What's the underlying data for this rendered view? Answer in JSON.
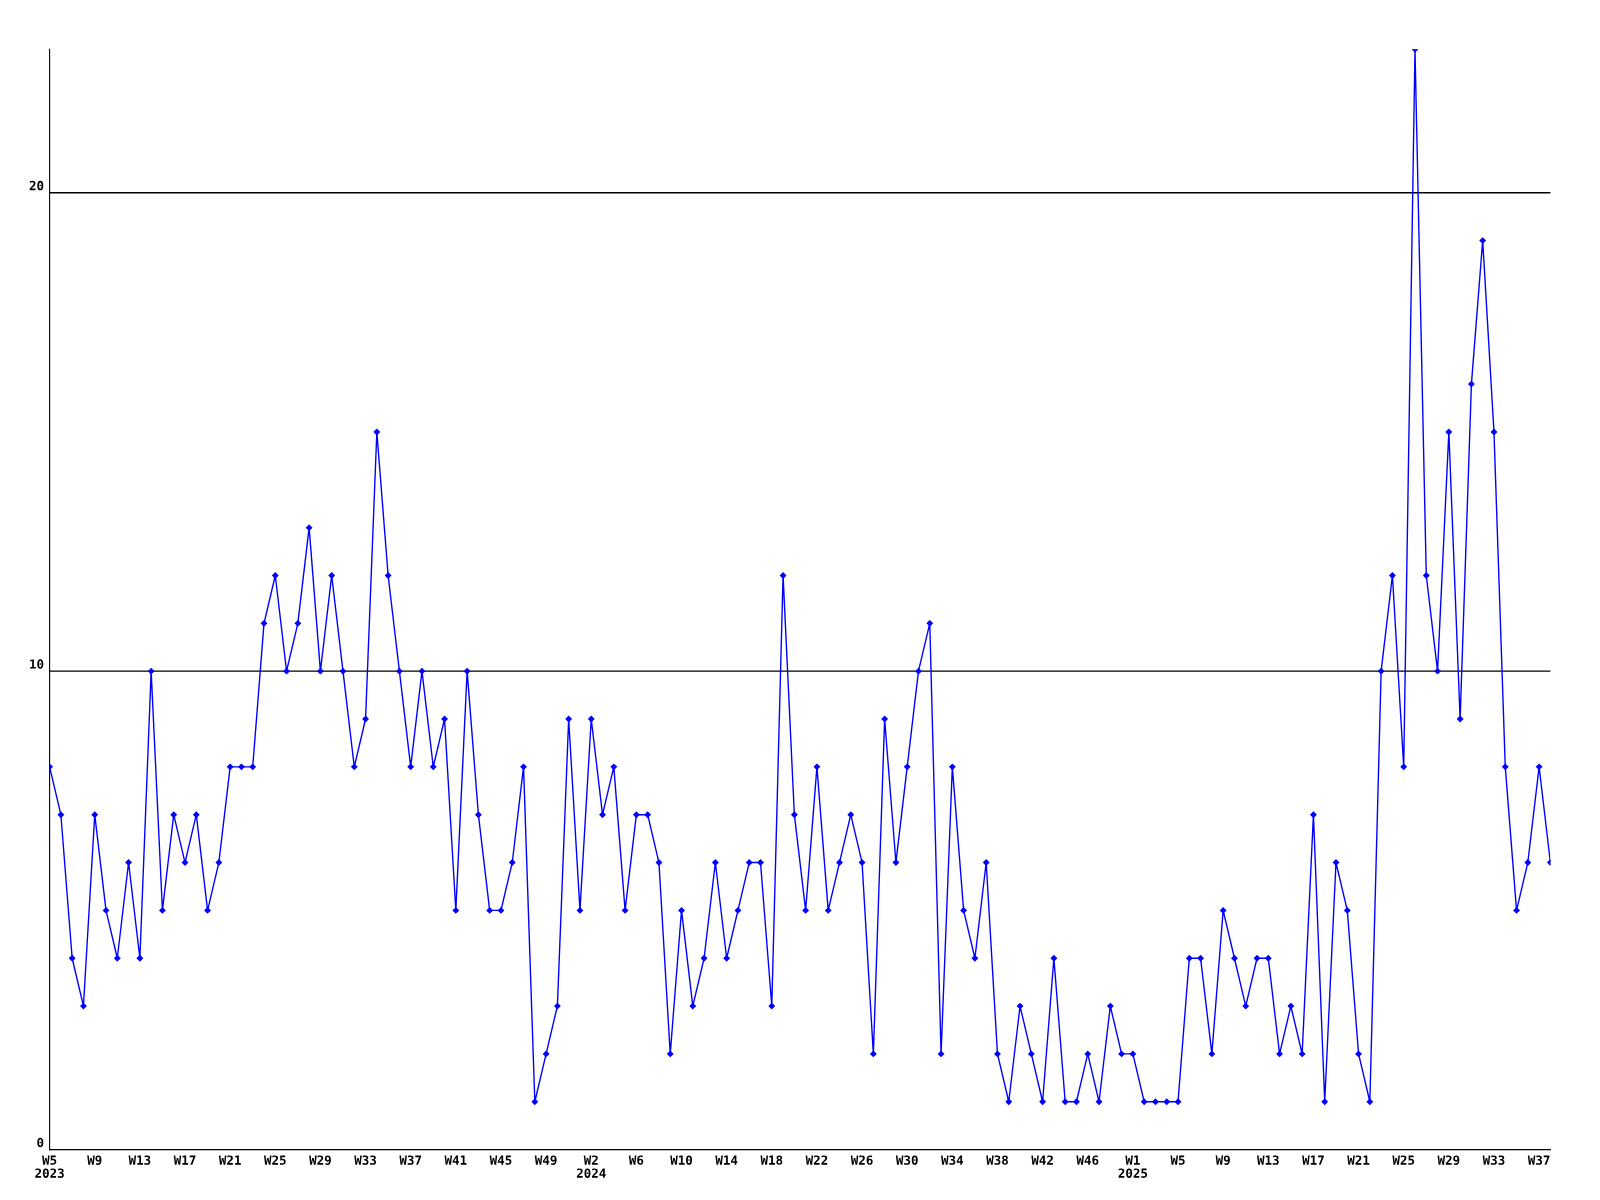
{
  "chart_data": {
    "type": "line",
    "categories": [
      "W5\n2023",
      null,
      null,
      null,
      "W9",
      null,
      null,
      null,
      "W13",
      null,
      null,
      null,
      "W17",
      null,
      null,
      null,
      "W21",
      null,
      null,
      null,
      "W25",
      null,
      null,
      null,
      "W29",
      null,
      null,
      null,
      "W33",
      null,
      null,
      null,
      "W37",
      null,
      null,
      null,
      "W41",
      null,
      null,
      null,
      "W45",
      null,
      null,
      null,
      "W49",
      null,
      null,
      null,
      "W2\n2024",
      null,
      null,
      null,
      "W6",
      null,
      null,
      null,
      "W10",
      null,
      null,
      null,
      "W14",
      null,
      null,
      null,
      "W18",
      null,
      null,
      null,
      "W22",
      null,
      null,
      null,
      "W26",
      null,
      null,
      null,
      "W30",
      null,
      null,
      null,
      "W34",
      null,
      null,
      null,
      "W38",
      null,
      null,
      null,
      "W42",
      null,
      null,
      null,
      "W46",
      null,
      null,
      null,
      "W1\n2025",
      null,
      null,
      null,
      "W5",
      null,
      null,
      null,
      "W9",
      null,
      null,
      null,
      "W13",
      null,
      null,
      null,
      "W17",
      null,
      null,
      null,
      "W21",
      null,
      null,
      null,
      "W25",
      null,
      null,
      null,
      "W29",
      null,
      null,
      null,
      "W33",
      null,
      null,
      null,
      "W37",
      null
    ],
    "series": [
      {
        "color": "#0000ff",
        "values": [
          8,
          7,
          4,
          3,
          7,
          5,
          4,
          6,
          4,
          10,
          5,
          7,
          6,
          7,
          5,
          6,
          8,
          8,
          8,
          11,
          12,
          10,
          11,
          13,
          10,
          12,
          10,
          8,
          9,
          15,
          12,
          10,
          8,
          10,
          8,
          9,
          5,
          10,
          7,
          5,
          5,
          6,
          8,
          1,
          2,
          3,
          9,
          5,
          9,
          7,
          8,
          5,
          7,
          7,
          6,
          2,
          5,
          3,
          4,
          6,
          4,
          5,
          6,
          6,
          3,
          12,
          7,
          5,
          8,
          5,
          6,
          7,
          6,
          2,
          9,
          6,
          8,
          10,
          11,
          2,
          8,
          5,
          4,
          6,
          2,
          1,
          3,
          2,
          1,
          4,
          1,
          1,
          2,
          1,
          3,
          2,
          2,
          1,
          1,
          1,
          1,
          4,
          4,
          2,
          5,
          4,
          3,
          4,
          4,
          2,
          3,
          2,
          7,
          1,
          6,
          5,
          2,
          1,
          10,
          12,
          8,
          23,
          12,
          10,
          15,
          9,
          16,
          19,
          15,
          8,
          5,
          6,
          8,
          6
        ]
      }
    ],
    "ylim": [
      0,
      23
    ],
    "yticks": [
      0,
      10,
      20
    ],
    "grid": "y",
    "marker": "diamond",
    "line_style": "solid"
  }
}
